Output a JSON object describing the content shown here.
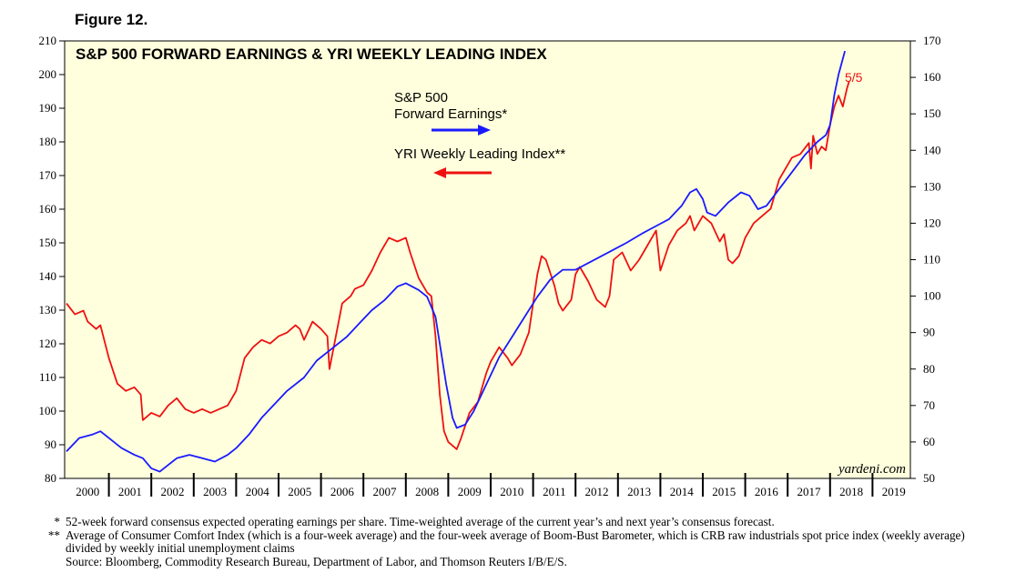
{
  "figure_label": "Figure 12.",
  "watermark": "yardeni.com",
  "end_label": "5/5",
  "notes": [
    {
      "mark": "*",
      "text": "52-week forward consensus expected operating earnings per share. Time-weighted average of the current year’s and next year’s consensus forecast."
    },
    {
      "mark": "**",
      "text": "Average of Consumer Comfort Index (which is a four-week average) and the four-week average of Boom-Bust Barometer, which is CRB raw industrials spot price index (weekly average) divided by weekly initial unemployment claims"
    },
    {
      "mark": "",
      "text": "Source: Bloomberg, Commodity Research Bureau, Department of Labor, and Thomson Reuters I/B/E/S."
    }
  ],
  "colors": {
    "blue_series": "#1a1aff",
    "red_series": "#ee1111",
    "plot_bg": "#ffffdd"
  },
  "chart_data": {
    "type": "line",
    "title": "S&P 500 FORWARD EARNINGS & YRI WEEKLY LEADING INDEX",
    "x_range": [
      2000,
      2020
    ],
    "x_tick_labels": [
      "2000",
      "2001",
      "2002",
      "2003",
      "2004",
      "2005",
      "2006",
      "2007",
      "2008",
      "2009",
      "2010",
      "2011",
      "2012",
      "2013",
      "2014",
      "2015",
      "2016",
      "2017",
      "2018",
      "2019"
    ],
    "y_left": {
      "range": [
        80,
        210
      ],
      "ticks": [
        80,
        90,
        100,
        110,
        120,
        130,
        140,
        150,
        160,
        170,
        180,
        190,
        200,
        210
      ]
    },
    "y_right": {
      "range": [
        50,
        170
      ],
      "ticks": [
        50,
        60,
        70,
        80,
        90,
        100,
        110,
        120,
        130,
        140,
        150,
        160,
        170
      ]
    },
    "series": [
      {
        "name": "S&P 500 Forward Earnings*",
        "legend_lines": [
          "S&P 500",
          "Forward Earnings*"
        ],
        "arrow": "right",
        "axis": "left",
        "color": "#1a1aff",
        "points": [
          [
            2000.0,
            88
          ],
          [
            2000.3,
            92
          ],
          [
            2000.6,
            93
          ],
          [
            2000.8,
            94
          ],
          [
            2001.0,
            92
          ],
          [
            2001.3,
            89
          ],
          [
            2001.6,
            87
          ],
          [
            2001.8,
            86
          ],
          [
            2002.0,
            83
          ],
          [
            2002.2,
            82
          ],
          [
            2002.4,
            84
          ],
          [
            2002.6,
            86
          ],
          [
            2002.9,
            87
          ],
          [
            2003.2,
            86
          ],
          [
            2003.5,
            85
          ],
          [
            2003.8,
            87
          ],
          [
            2004.0,
            89
          ],
          [
            2004.3,
            93
          ],
          [
            2004.6,
            98
          ],
          [
            2004.9,
            102
          ],
          [
            2005.2,
            106
          ],
          [
            2005.6,
            110
          ],
          [
            2005.9,
            115
          ],
          [
            2006.2,
            118
          ],
          [
            2006.6,
            122
          ],
          [
            2006.9,
            126
          ],
          [
            2007.2,
            130
          ],
          [
            2007.5,
            133
          ],
          [
            2007.8,
            137
          ],
          [
            2008.0,
            138
          ],
          [
            2008.3,
            136
          ],
          [
            2008.5,
            134
          ],
          [
            2008.7,
            128
          ],
          [
            2008.8,
            120
          ],
          [
            2008.95,
            108
          ],
          [
            2009.1,
            98
          ],
          [
            2009.2,
            95
          ],
          [
            2009.4,
            96
          ],
          [
            2009.6,
            100
          ],
          [
            2009.9,
            108
          ],
          [
            2010.2,
            116
          ],
          [
            2010.5,
            122
          ],
          [
            2010.8,
            128
          ],
          [
            2011.1,
            134
          ],
          [
            2011.4,
            139
          ],
          [
            2011.7,
            142
          ],
          [
            2012.0,
            142
          ],
          [
            2012.3,
            144
          ],
          [
            2012.6,
            146
          ],
          [
            2012.9,
            148
          ],
          [
            2013.2,
            150
          ],
          [
            2013.6,
            153
          ],
          [
            2013.9,
            155
          ],
          [
            2014.2,
            157
          ],
          [
            2014.5,
            161
          ],
          [
            2014.7,
            165
          ],
          [
            2014.85,
            166
          ],
          [
            2015.0,
            163
          ],
          [
            2015.1,
            159
          ],
          [
            2015.3,
            158
          ],
          [
            2015.6,
            162
          ],
          [
            2015.9,
            165
          ],
          [
            2016.1,
            164
          ],
          [
            2016.3,
            160
          ],
          [
            2016.5,
            161
          ],
          [
            2016.8,
            166
          ],
          [
            2017.1,
            171
          ],
          [
            2017.4,
            176
          ],
          [
            2017.7,
            180
          ],
          [
            2017.9,
            182
          ],
          [
            2018.0,
            185
          ],
          [
            2018.1,
            194
          ],
          [
            2018.2,
            200
          ],
          [
            2018.35,
            207
          ]
        ]
      },
      {
        "name": "YRI Weekly Leading Index**",
        "legend_lines": [
          "YRI Weekly Leading Index**"
        ],
        "arrow": "left",
        "axis": "right",
        "color": "#ee1111",
        "points": [
          [
            2000.0,
            98
          ],
          [
            2000.2,
            95
          ],
          [
            2000.4,
            96
          ],
          [
            2000.5,
            93
          ],
          [
            2000.7,
            91
          ],
          [
            2000.8,
            92
          ],
          [
            2001.0,
            83
          ],
          [
            2001.2,
            76
          ],
          [
            2001.4,
            74
          ],
          [
            2001.6,
            75
          ],
          [
            2001.75,
            73
          ],
          [
            2001.8,
            66
          ],
          [
            2002.0,
            68
          ],
          [
            2002.2,
            67
          ],
          [
            2002.4,
            70
          ],
          [
            2002.6,
            72
          ],
          [
            2002.8,
            69
          ],
          [
            2003.0,
            68
          ],
          [
            2003.2,
            69
          ],
          [
            2003.4,
            68
          ],
          [
            2003.6,
            69
          ],
          [
            2003.8,
            70
          ],
          [
            2004.0,
            74
          ],
          [
            2004.2,
            83
          ],
          [
            2004.4,
            86
          ],
          [
            2004.6,
            88
          ],
          [
            2004.8,
            87
          ],
          [
            2005.0,
            89
          ],
          [
            2005.2,
            90
          ],
          [
            2005.4,
            92
          ],
          [
            2005.5,
            91
          ],
          [
            2005.6,
            88
          ],
          [
            2005.8,
            93
          ],
          [
            2006.0,
            91
          ],
          [
            2006.15,
            89
          ],
          [
            2006.2,
            80
          ],
          [
            2006.3,
            86
          ],
          [
            2006.5,
            98
          ],
          [
            2006.7,
            100
          ],
          [
            2006.8,
            102
          ],
          [
            2007.0,
            103
          ],
          [
            2007.2,
            107
          ],
          [
            2007.4,
            112
          ],
          [
            2007.6,
            116
          ],
          [
            2007.8,
            115
          ],
          [
            2008.0,
            116
          ],
          [
            2008.1,
            112
          ],
          [
            2008.3,
            105
          ],
          [
            2008.5,
            101
          ],
          [
            2008.6,
            100
          ],
          [
            2008.7,
            89
          ],
          [
            2008.8,
            73
          ],
          [
            2008.9,
            63
          ],
          [
            2009.0,
            60
          ],
          [
            2009.2,
            58
          ],
          [
            2009.3,
            61
          ],
          [
            2009.5,
            68
          ],
          [
            2009.7,
            71
          ],
          [
            2009.9,
            79
          ],
          [
            2010.0,
            82
          ],
          [
            2010.2,
            86
          ],
          [
            2010.4,
            83
          ],
          [
            2010.5,
            81
          ],
          [
            2010.7,
            84
          ],
          [
            2010.9,
            90
          ],
          [
            2011.0,
            98
          ],
          [
            2011.1,
            106
          ],
          [
            2011.2,
            111
          ],
          [
            2011.3,
            110
          ],
          [
            2011.5,
            103
          ],
          [
            2011.6,
            98
          ],
          [
            2011.7,
            96
          ],
          [
            2011.9,
            99
          ],
          [
            2012.0,
            106
          ],
          [
            2012.1,
            108
          ],
          [
            2012.3,
            104
          ],
          [
            2012.5,
            99
          ],
          [
            2012.7,
            97
          ],
          [
            2012.8,
            100
          ],
          [
            2012.9,
            110
          ],
          [
            2013.1,
            112
          ],
          [
            2013.3,
            107
          ],
          [
            2013.5,
            110
          ],
          [
            2013.7,
            114
          ],
          [
            2013.9,
            118
          ],
          [
            2014.0,
            107
          ],
          [
            2014.2,
            114
          ],
          [
            2014.4,
            118
          ],
          [
            2014.6,
            120
          ],
          [
            2014.7,
            122
          ],
          [
            2014.8,
            118
          ],
          [
            2015.0,
            122
          ],
          [
            2015.2,
            120
          ],
          [
            2015.4,
            115
          ],
          [
            2015.5,
            117
          ],
          [
            2015.6,
            110
          ],
          [
            2015.7,
            109
          ],
          [
            2015.85,
            111
          ],
          [
            2016.0,
            116
          ],
          [
            2016.2,
            120
          ],
          [
            2016.4,
            122
          ],
          [
            2016.6,
            124
          ],
          [
            2016.8,
            132
          ],
          [
            2017.0,
            136
          ],
          [
            2017.1,
            138
          ],
          [
            2017.3,
            139
          ],
          [
            2017.5,
            142
          ],
          [
            2017.55,
            135
          ],
          [
            2017.6,
            144
          ],
          [
            2017.7,
            139
          ],
          [
            2017.8,
            141
          ],
          [
            2017.9,
            140
          ],
          [
            2018.0,
            147
          ],
          [
            2018.1,
            152
          ],
          [
            2018.2,
            155
          ],
          [
            2018.3,
            152
          ],
          [
            2018.4,
            157
          ],
          [
            2018.45,
            159
          ]
        ]
      }
    ]
  }
}
